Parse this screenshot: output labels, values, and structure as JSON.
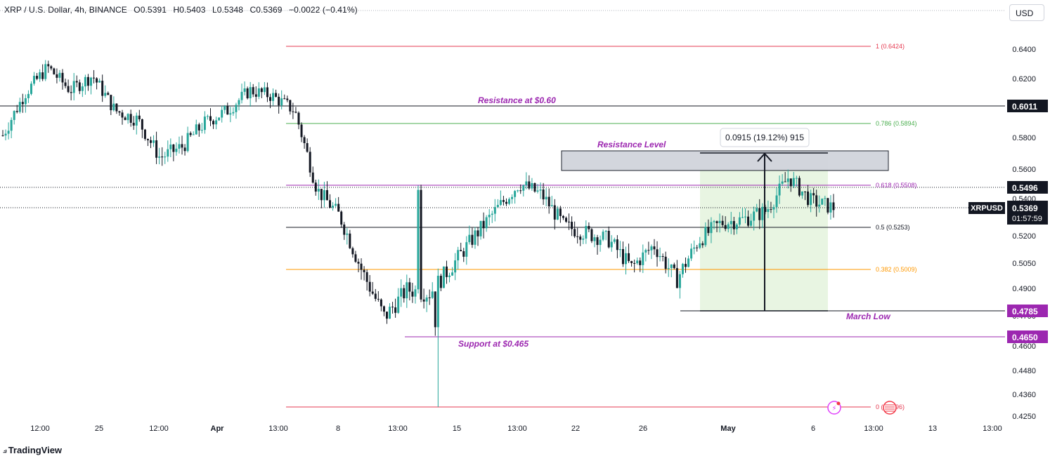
{
  "header": {
    "symbol": "XRP / U.S. Dollar, 4h, BINANCE",
    "open": "O0.5391",
    "high": "H0.5403",
    "low": "L0.5348",
    "close": "C0.5369",
    "change": "−0.0022 (−0.41%)"
  },
  "currency_button": "USD",
  "branding": "TradingView",
  "chart_data": {
    "type": "candlestick",
    "symbol": "XRPUSD",
    "interval": "4h",
    "exchange": "BINANCE",
    "y_axis": {
      "ticks": [
        "0.6400",
        "0.6200",
        "0.6000",
        "0.5800",
        "0.5600",
        "0.5400",
        "0.5200",
        "0.5050",
        "0.4900",
        "0.4750",
        "0.4600",
        "0.4480",
        "0.4360",
        "0.4250"
      ]
    },
    "x_axis": {
      "ticks": [
        "12:00",
        "25",
        "12:00",
        "Apr",
        "13:00",
        "8",
        "13:00",
        "15",
        "13:00",
        "22",
        "26",
        "May",
        "6",
        "13:00",
        "13",
        "13:00"
      ]
    },
    "price_labels": [
      {
        "text": "0.6011",
        "style": "dark"
      },
      {
        "text": "0.5496",
        "style": "dark"
      },
      {
        "text": "0.5369",
        "style": "dark",
        "symbol": "XRPUSD",
        "countdown": "01:57:59"
      },
      {
        "text": "0.4785",
        "style": "purple"
      },
      {
        "text": "0.4650",
        "style": "purple"
      }
    ],
    "fib_levels": [
      {
        "label": "1 (0.6424)",
        "color": "#e53950"
      },
      {
        "label": "0.786 (0.5894)",
        "color": "#4caf50"
      },
      {
        "label": "0.618 (0.5508)",
        "color": "#9c27b0"
      },
      {
        "label": "0.5 (0.5253)",
        "color": "#131722"
      },
      {
        "label": "0.382 (0.5009)",
        "color": "#ff9800"
      },
      {
        "label": "0 (0.4296)",
        "color": "#e53950"
      }
    ],
    "annotations": {
      "resistance_060": "Resistance at $0.60",
      "resistance_level": "Resistance Level",
      "support_0465": "Support at $0.465",
      "march_low": "March Low",
      "measure": "0.0915 (19.12%) 915"
    },
    "candles_ohlc_trend": {
      "start_price": 0.582,
      "waypoints": [
        [
          0.582,
          0.61,
          0.628,
          0.612,
          0.622,
          0.598,
          0.592,
          0.568,
          0.575,
          0.59,
          0.598,
          0.612,
          0.608,
          0.598
        ],
        [
          0.548,
          0.532,
          0.5,
          0.475,
          0.49,
          0.488,
          0.503,
          0.52,
          0.536,
          0.552,
          0.545,
          0.526,
          0.522,
          0.518
        ],
        [
          0.502,
          0.515,
          0.495,
          0.518,
          0.528,
          0.53,
          0.535,
          0.556,
          0.541,
          0.537
        ]
      ]
    },
    "colors": {
      "up": "#26a69a",
      "down": "#131722",
      "grid": "#f0f3fa"
    }
  }
}
